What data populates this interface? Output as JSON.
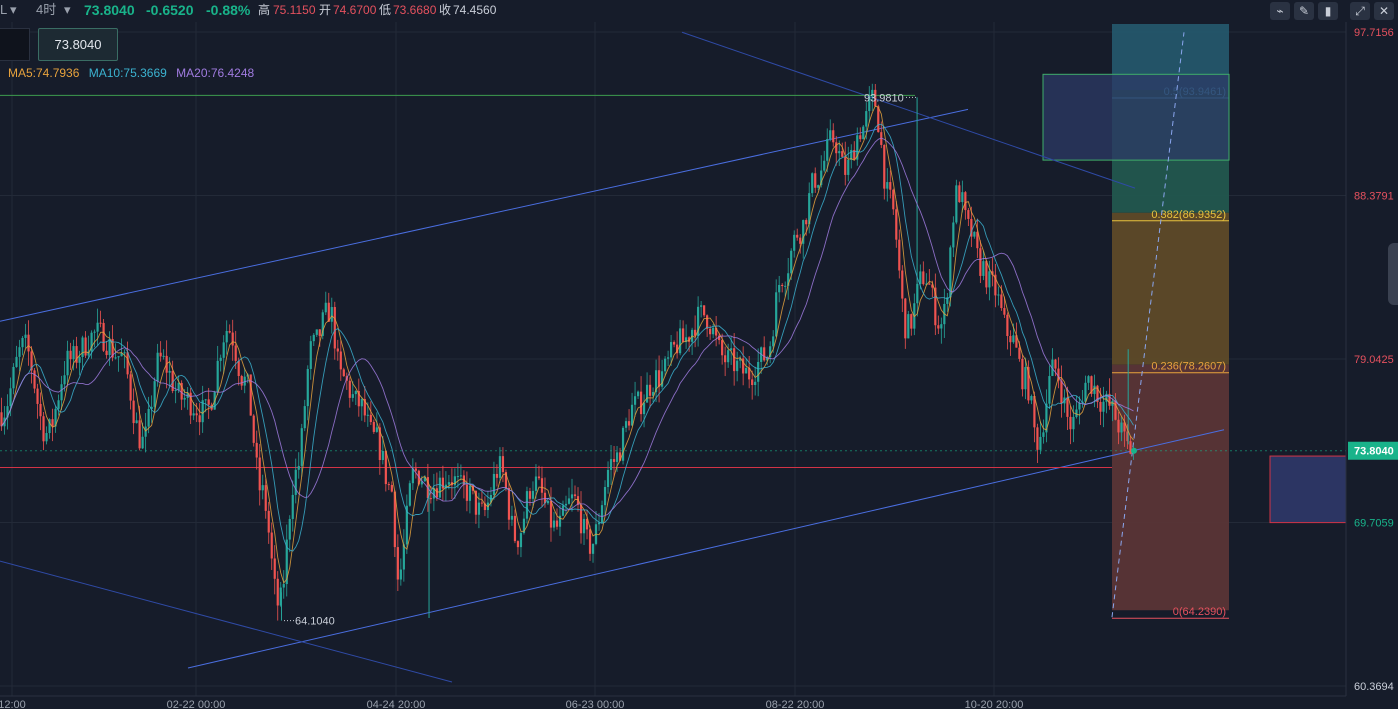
{
  "toolbar": {
    "symbol_fragment": "L",
    "interval": "4时",
    "last": "73.8040",
    "change": "-0.6520",
    "change_pct": "-0.88%",
    "high_label": "高",
    "high": "75.1150",
    "open_label": "开",
    "open": "74.6700",
    "low_label": "低",
    "low": "73.6680",
    "close_label": "收",
    "close": "74.4560",
    "icons": [
      "indicator-icon",
      "pencil-icon",
      "candles-icon",
      "expand-icon",
      "close-icon"
    ]
  },
  "price_box": "73.8040",
  "ma": {
    "ma5": "MA5:74.7936",
    "ma10": "MA10:75.3669",
    "ma20": "MA20:76.4248"
  },
  "colors": {
    "background": "#161c2a",
    "up": "#26a69a",
    "down": "#ef5350",
    "ma5": "#e8a33d",
    "ma10": "#3bb2d0",
    "ma20": "#a07be0",
    "channel": "#4a6ee0",
    "support": "#d23346"
  },
  "chart_data": {
    "type": "candlestick",
    "ylim": [
      60.3694,
      97.7156
    ],
    "y_axis_labels": [
      {
        "value": 97.7156,
        "text": "97.7156",
        "color": "#e5515e"
      },
      {
        "value": 88.3791,
        "text": "88.3791",
        "color": "#e5515e"
      },
      {
        "value": 79.0425,
        "text": "79.0425",
        "color": "#e5515e"
      },
      {
        "value": 69.7059,
        "text": "69.7059",
        "color": "#19b38a"
      },
      {
        "value": 60.3694,
        "text": "60.3694",
        "color": "#c9ced8"
      }
    ],
    "x_tick_labels": [
      "12:00",
      "02-22 00:00",
      "04-24 20:00",
      "06-23 00:00",
      "08-22 20:00",
      "10-20 20:00"
    ],
    "current_price": 73.804,
    "current_price_label": "73.8040",
    "annotations": {
      "high": {
        "value": 93.981,
        "text": "93.9810"
      },
      "low": {
        "value": 64.104,
        "text": "64.1040"
      }
    },
    "anchor_points": [
      [
        0,
        76.0
      ],
      [
        0.02,
        79.8
      ],
      [
        0.04,
        74.8
      ],
      [
        0.06,
        79.0
      ],
      [
        0.085,
        80.5
      ],
      [
        0.105,
        79.2
      ],
      [
        0.125,
        74.3
      ],
      [
        0.14,
        79.0
      ],
      [
        0.16,
        76.8
      ],
      [
        0.18,
        76.0
      ],
      [
        0.2,
        80.8
      ],
      [
        0.215,
        77.8
      ],
      [
        0.23,
        71.4
      ],
      [
        0.245,
        65.0
      ],
      [
        0.26,
        72.5
      ],
      [
        0.275,
        79.8
      ],
      [
        0.29,
        81.8
      ],
      [
        0.3,
        78.0
      ],
      [
        0.315,
        76.5
      ],
      [
        0.33,
        74.5
      ],
      [
        0.345,
        71.5
      ],
      [
        0.35,
        66.5
      ],
      [
        0.365,
        72.6
      ],
      [
        0.38,
        71.8
      ],
      [
        0.395,
        72.3
      ],
      [
        0.41,
        71.5
      ],
      [
        0.425,
        70.2
      ],
      [
        0.44,
        72.8
      ],
      [
        0.455,
        68.8
      ],
      [
        0.47,
        72.0
      ],
      [
        0.49,
        69.4
      ],
      [
        0.505,
        71.0
      ],
      [
        0.52,
        68.4
      ],
      [
        0.54,
        73.2
      ],
      [
        0.56,
        76.4
      ],
      [
        0.58,
        78.0
      ],
      [
        0.6,
        80.0
      ],
      [
        0.62,
        81.6
      ],
      [
        0.64,
        79.0
      ],
      [
        0.66,
        78.2
      ],
      [
        0.675,
        79.2
      ],
      [
        0.69,
        83.8
      ],
      [
        0.705,
        86.4
      ],
      [
        0.72,
        89.4
      ],
      [
        0.735,
        91.6
      ],
      [
        0.745,
        89.8
      ],
      [
        0.76,
        92.2
      ],
      [
        0.77,
        93.9
      ],
      [
        0.785,
        88.0
      ],
      [
        0.8,
        80.8
      ],
      [
        0.815,
        83.8
      ],
      [
        0.83,
        81.0
      ],
      [
        0.845,
        88.6
      ],
      [
        0.855,
        86.4
      ],
      [
        0.865,
        84.4
      ],
      [
        0.875,
        83.2
      ],
      [
        0.89,
        80.5
      ],
      [
        0.905,
        77.8
      ],
      [
        0.915,
        74.4
      ],
      [
        0.93,
        78.5
      ],
      [
        0.945,
        75.3
      ],
      [
        0.96,
        77.8
      ],
      [
        0.975,
        76.5
      ],
      [
        1.0,
        73.8
      ]
    ],
    "fibonacci": {
      "levels": [
        {
          "text": "0.5(93.9461)",
          "value": 93.9461,
          "color": "#4aa8c8"
        },
        {
          "text": "0.382(86.9352)",
          "value": 86.9352,
          "color": "#e8c23d"
        },
        {
          "text": "0.236(78.2607)",
          "value": 78.2607,
          "color": "#e8a33d"
        },
        {
          "text": "0(64.2390)",
          "value": 64.239,
          "color": "#e5515e"
        }
      ],
      "top_value": 97.7156
    }
  }
}
